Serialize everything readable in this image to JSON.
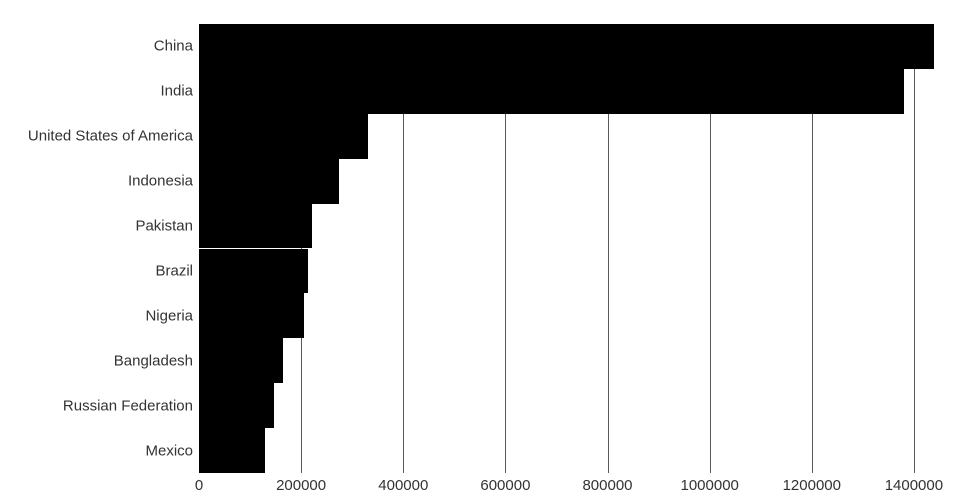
{
  "chart_data": {
    "type": "bar",
    "orientation": "horizontal",
    "categories": [
      "China",
      "India",
      "United States of America",
      "Indonesia",
      "Pakistan",
      "Brazil",
      "Nigeria",
      "Bangladesh",
      "Russian Federation",
      "Mexico"
    ],
    "values": [
      1439324,
      1380004,
      331003,
      273524,
      220892,
      212559,
      206140,
      164689,
      145934,
      128933
    ],
    "x_ticks": [
      0,
      200000,
      400000,
      600000,
      800000,
      1000000,
      1200000,
      1400000
    ],
    "x_tick_labels": [
      "0",
      "200000",
      "400000",
      "600000",
      "800000",
      "1000000",
      "1200000",
      "1400000"
    ],
    "xlim": [
      0,
      1453000
    ],
    "grid": true,
    "legend": "none",
    "bar_color": "#000000",
    "gridline_color": "#595959",
    "text_color": "#333333",
    "background_color": "#ffffff"
  }
}
